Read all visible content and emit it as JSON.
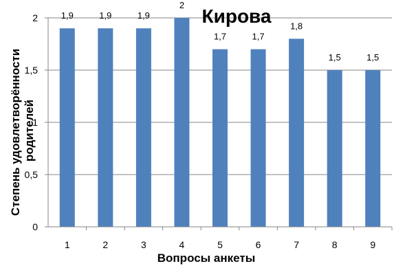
{
  "chart_data": {
    "type": "bar",
    "title": "Кирова",
    "xlabel": "Вопросы анкеты",
    "ylabel": "Степень удовлетворённости родителей",
    "categories": [
      "1",
      "2",
      "3",
      "4",
      "5",
      "6",
      "7",
      "8",
      "9"
    ],
    "values": [
      1.9,
      1.9,
      1.9,
      2,
      1.7,
      1.7,
      1.8,
      1.5,
      1.5
    ],
    "data_labels": [
      "1,9",
      "1,9",
      "1,9",
      "2",
      "1,7",
      "1,7",
      "1,8",
      "1,5",
      "1,5"
    ],
    "ylim": [
      0,
      2
    ],
    "yticks": [
      0,
      0.5,
      1,
      1.5,
      2
    ],
    "ytick_labels": [
      "0",
      "0,5",
      "1",
      "1,5",
      "2"
    ],
    "grid": true,
    "legend": "none",
    "bar_color": "#4f81bd",
    "grid_color": "#868686"
  }
}
